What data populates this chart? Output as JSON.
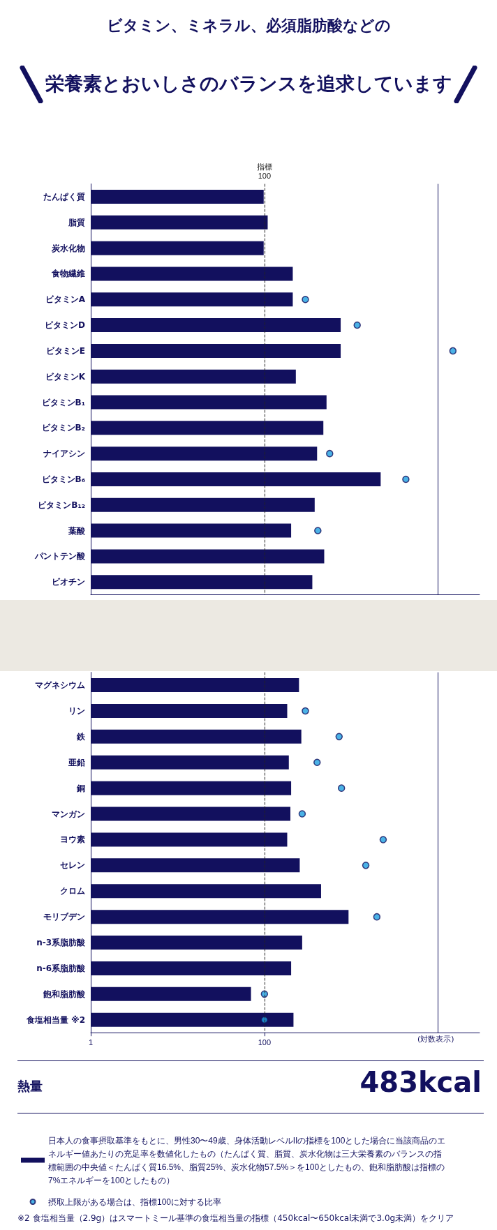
{
  "chart_data": [
    {
      "type": "bar",
      "orientation": "horizontal",
      "subtitle": "ビタミン、ミネラル、必須脂肪酸などの",
      "title": "栄養素とおいしさのバランスを追求しています",
      "categories": [
        "たんぱく質",
        "脂質",
        "炭水化物",
        "食物繊維",
        "ビタミンA",
        "ビタミンD",
        "ビタミンE",
        "ビタミンK",
        "ビタミンB₁",
        "ビタミンB₂",
        "ナイアシン",
        "ビタミンB₆",
        "ビタミンB₁₂",
        "葉酸",
        "パントテン酸",
        "ビオチン"
      ],
      "series": [
        {
          "color": "#12105e",
          "values": [
            98,
            109,
            98,
            212,
            212,
            755,
            755,
            230,
            519,
            477,
            404,
            2180,
            379,
            203,
            488,
            356
          ]
        },
        {
          "type": "scatter",
          "color": "#1e9fe0",
          "values": [
            null,
            null,
            null,
            null,
            296,
            1170,
            14800,
            null,
            null,
            null,
            564,
            4250,
            null,
            412,
            null,
            null
          ]
        }
      ],
      "xlim": [
        1,
        30000
      ],
      "log": "x",
      "tick_labels": "y",
      "marker": "circle",
      "ref_lines": [
        {
          "axis": "x",
          "value": 100,
          "label": "指標\n100",
          "line_style": "dashed",
          "color": "#222222"
        },
        {
          "axis": "x",
          "value": 10000,
          "label": null,
          "line_style": "solid",
          "color": "#12105e"
        }
      ]
    },
    {
      "type": "bar",
      "orientation": "horizontal",
      "categories": [
        "マグネシウム",
        "リン",
        "鉄",
        "亜鉛",
        "銅",
        "マンガン",
        "ヨウ素",
        "セレン",
        "クロム",
        "モリブデン",
        "n-3系脂肪酸",
        "n-6系脂肪酸",
        "飽和脂肪酸",
        "食塩相当量 ※2"
      ],
      "series": [
        {
          "name": "日本人の食事摂取基準をもとに、男性30〜49歳、身体活動レベルIIの指標を100とした場合に当該商品のエネルギー値あたりの充足率を数値化したもの（たんぱく質、脂質、炭水化物は三大栄養素のバランスの指標範囲の中央値＜たんぱく質16.5%、脂質25%、炭水化物57.5%＞を100としたもの、飽和脂肪酸は指標の7%エネルギーを100としたもの）",
          "color": "#12105e",
          "values": [
            250,
            183,
            266,
            191,
            203,
            199,
            183,
            255,
            449,
            930,
            272,
            203,
            70,
            216
          ]
        },
        {
          "type": "scatter",
          "name": "摂取上限がある場合は、指標100に対する比率",
          "color": "#1e9fe0",
          "values": [
            null,
            296,
            724,
            404,
            771,
            272,
            2330,
            1470,
            null,
            1970,
            null,
            null,
            100,
            100
          ]
        }
      ],
      "xlim": [
        1,
        30000
      ],
      "xticks": [
        1,
        100
      ],
      "log": "x",
      "marker": "circle",
      "legend": "bottom",
      "ref_lines": [
        {
          "axis": "x",
          "value": 100,
          "label": null,
          "line_style": "dashed",
          "color": "#222222"
        },
        {
          "axis": "x",
          "value": 10000,
          "label": null,
          "line_style": "solid",
          "color": "#12105e"
        }
      ],
      "annotations": [
        "熱量",
        "483kcal",
        "(対数表示)",
        "※2 食塩相当量（2.9g）はスマートミール基準の食塩相当量の指標（450kcal〜650kcal未満で3.0g未満）をクリア"
      ]
    }
  ]
}
